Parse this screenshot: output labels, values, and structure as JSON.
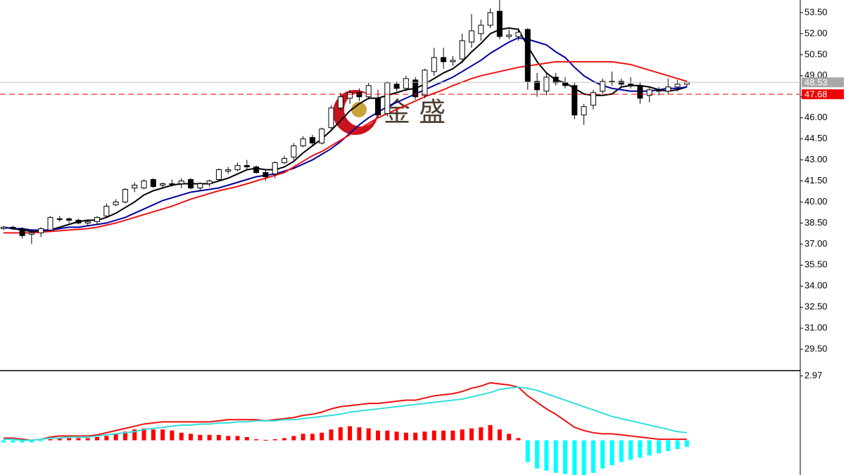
{
  "chart_data": [
    {
      "type": "candlestick",
      "watermark": "金 盛",
      "ylim": [
        28.0,
        54.4
      ],
      "yticks": [
        {
          "value": 29.5,
          "label": "29.50"
        },
        {
          "value": 31,
          "label": "31.00"
        },
        {
          "value": 32.5,
          "label": "32.50"
        },
        {
          "value": 34,
          "label": "34.00"
        },
        {
          "value": 35.5,
          "label": "35.50"
        },
        {
          "value": 37,
          "label": "37.00"
        },
        {
          "value": 38.5,
          "label": "38.50"
        },
        {
          "value": 40,
          "label": "40.00"
        },
        {
          "value": 41.5,
          "label": "41.50"
        },
        {
          "value": 43,
          "label": "43.00"
        },
        {
          "value": 44.5,
          "label": "44.50"
        },
        {
          "value": 46,
          "label": "46.00"
        },
        {
          "value": 47.5,
          "label": "47.50"
        },
        {
          "value": 49,
          "label": "49.00"
        },
        {
          "value": 50.5,
          "label": "50.50"
        },
        {
          "value": 52,
          "label": "52.00"
        },
        {
          "value": 53.5,
          "label": "53.50"
        }
      ],
      "up_color": "#ffffff",
      "down_color": "#000000",
      "outline_color": "#000000",
      "open": [
        38.1,
        38.2,
        38.1,
        37.7,
        37.8,
        38.0,
        38.8,
        38.8,
        38.7,
        38.5,
        38.6,
        39.0,
        39.8,
        40.0,
        41.0,
        41.0,
        41.6,
        41.2,
        41.3,
        41.3,
        41.6,
        41.0,
        41.3,
        41.6,
        42.2,
        42.3,
        42.6,
        42.5,
        42.1,
        42.0,
        42.8,
        43.2,
        44.0,
        44.6,
        44.2,
        45.3,
        46.7,
        47.4,
        47.8,
        47.5,
        47.4,
        46.3,
        48.4,
        48.1,
        48.7,
        47.6,
        49.3,
        50.3,
        50.0,
        50.2,
        51.4,
        52.0,
        52.6,
        53.6,
        51.8,
        51.8,
        52.3,
        48.6,
        47.9,
        48.9,
        48.5,
        48.3,
        46.2,
        46.9,
        47.9,
        48.6,
        48.6,
        48.4,
        48.3,
        47.6,
        48.0,
        47.9,
        48.2,
        48.4
      ],
      "high": [
        38.3,
        38.3,
        38.2,
        38.0,
        38.2,
        39.0,
        39.0,
        38.9,
        38.8,
        38.7,
        39.0,
        39.9,
        40.2,
        41.0,
        41.4,
        41.6,
        41.7,
        41.4,
        41.6,
        41.7,
        41.7,
        41.4,
        41.6,
        42.4,
        42.5,
        42.8,
        43.0,
        42.6,
        42.3,
        42.9,
        43.3,
        44.2,
        44.7,
        44.8,
        45.3,
        46.9,
        47.8,
        48.0,
        48.1,
        48.5,
        48.0,
        48.6,
        48.6,
        49.0,
        48.9,
        49.5,
        51.0,
        51.0,
        50.4,
        52.0,
        53.4,
        53.0,
        53.8,
        54.4,
        52.3,
        52.4,
        52.4,
        49.2,
        49.2,
        49.2,
        48.9,
        48.5,
        47.0,
        48.0,
        48.8,
        49.3,
        48.8,
        48.9,
        48.5,
        48.2,
        48.2,
        48.8,
        48.7,
        48.6
      ],
      "low": [
        38.0,
        38.0,
        37.4,
        37.0,
        37.5,
        37.9,
        38.6,
        38.5,
        38.4,
        38.3,
        38.4,
        38.9,
        39.7,
        39.9,
        40.7,
        40.9,
        41.0,
        41.0,
        41.1,
        41.0,
        40.9,
        40.8,
        41.1,
        41.5,
        42.0,
        42.2,
        42.3,
        42.0,
        41.5,
        41.7,
        42.7,
        43.0,
        43.9,
        44.0,
        44.1,
        45.2,
        46.5,
        47.0,
        47.2,
        47.3,
        46.0,
        46.1,
        47.9,
        47.9,
        47.3,
        47.4,
        49.0,
        49.5,
        49.7,
        49.9,
        51.0,
        51.5,
        52.4,
        51.6,
        51.6,
        51.5,
        48.0,
        47.5,
        47.6,
        48.3,
        48.1,
        45.9,
        45.5,
        46.6,
        47.7,
        48.3,
        48.2,
        48.1,
        47.0,
        47.1,
        47.6,
        47.7,
        47.9,
        48.2
      ],
      "close": [
        38.2,
        38.1,
        37.6,
        37.8,
        38.1,
        38.9,
        38.8,
        38.7,
        38.5,
        38.6,
        38.9,
        39.7,
        40.0,
        40.9,
        41.2,
        41.5,
        41.1,
        41.3,
        41.3,
        41.5,
        41.0,
        41.3,
        41.5,
        42.3,
        42.3,
        42.6,
        42.5,
        42.1,
        41.8,
        42.8,
        43.1,
        44.0,
        44.5,
        44.2,
        45.2,
        46.7,
        47.5,
        47.8,
        47.5,
        48.3,
        46.2,
        48.5,
        48.1,
        48.8,
        47.5,
        49.4,
        50.3,
        50.0,
        50.1,
        51.5,
        52.2,
        52.6,
        53.5,
        51.8,
        51.9,
        52.1,
        48.6,
        48.0,
        48.9,
        48.5,
        48.3,
        46.2,
        46.8,
        47.8,
        48.6,
        48.6,
        48.4,
        48.3,
        47.4,
        48.0,
        47.9,
        48.2,
        48.4,
        48.53
      ],
      "series": [
        {
          "color": "#000000",
          "values": [
            38.2,
            38.1,
            38.0,
            37.9,
            37.9,
            38.0,
            38.2,
            38.4,
            38.6,
            38.7,
            38.7,
            38.9,
            39.2,
            39.6,
            40.0,
            40.5,
            40.8,
            41.0,
            41.2,
            41.3,
            41.3,
            41.3,
            41.3,
            41.5,
            41.7,
            42.0,
            42.3,
            42.4,
            42.3,
            42.3,
            42.5,
            42.9,
            43.5,
            44.0,
            44.5,
            45.1,
            45.8,
            46.5,
            47.0,
            47.4,
            47.4,
            47.6,
            47.8,
            48.0,
            48.1,
            48.4,
            48.8,
            49.2,
            49.5,
            50.0,
            50.7,
            51.3,
            52.0,
            52.3,
            52.4,
            52.3,
            51.1,
            50.0,
            49.2,
            48.7,
            48.5,
            48.1,
            47.7,
            47.6,
            47.6,
            47.7,
            48.2,
            48.3,
            48.3,
            48.2,
            48.0,
            47.9,
            48.0,
            48.2
          ]
        },
        {
          "color": "#0000a0",
          "values": [
            38.2,
            38.1,
            38.1,
            38.0,
            38.0,
            38.0,
            38.1,
            38.2,
            38.2,
            38.3,
            38.4,
            38.5,
            38.7,
            38.9,
            39.2,
            39.5,
            39.8,
            40.1,
            40.3,
            40.5,
            40.7,
            40.8,
            40.9,
            41.0,
            41.2,
            41.4,
            41.6,
            41.8,
            41.9,
            42.0,
            42.2,
            42.4,
            42.7,
            43.0,
            43.4,
            43.8,
            44.3,
            44.9,
            45.5,
            46.0,
            46.4,
            46.8,
            47.1,
            47.4,
            47.7,
            48.0,
            48.3,
            48.6,
            48.9,
            49.3,
            49.7,
            50.1,
            50.6,
            51.0,
            51.4,
            51.7,
            51.6,
            51.4,
            51.2,
            50.7,
            50.3,
            49.6,
            49.0,
            48.6,
            48.3,
            48.1,
            48.0,
            47.9,
            47.9,
            47.9,
            48.0,
            48.1,
            48.1,
            48.2
          ]
        },
        {
          "color": "#ee1111",
          "values": [
            37.8,
            37.8,
            37.8,
            37.8,
            37.85,
            37.9,
            37.95,
            38.0,
            38.05,
            38.1,
            38.2,
            38.35,
            38.5,
            38.7,
            38.9,
            39.1,
            39.3,
            39.5,
            39.7,
            39.95,
            40.2,
            40.4,
            40.6,
            40.8,
            40.95,
            41.1,
            41.3,
            41.5,
            41.7,
            41.9,
            42.1,
            42.5,
            42.9,
            43.3,
            43.6,
            44.0,
            44.4,
            44.8,
            45.2,
            45.6,
            46.0,
            46.3,
            46.6,
            46.9,
            47.2,
            47.5,
            47.75,
            48.0,
            48.3,
            48.55,
            48.8,
            49.0,
            49.15,
            49.3,
            49.45,
            49.6,
            49.7,
            49.8,
            49.9,
            50.0,
            50.0,
            50.0,
            50.0,
            50.0,
            50.0,
            50.0,
            49.9,
            49.8,
            49.6,
            49.4,
            49.2,
            49.0,
            48.8,
            48.6
          ]
        }
      ],
      "price_lines": [
        {
          "value": 48.53,
          "color": "#c0c0c0",
          "label_color": "#a8a8a8",
          "dashed": false
        },
        {
          "value": 47.68,
          "color": "#ee0000",
          "label_color": "#ee0000",
          "dashed": true
        }
      ]
    },
    {
      "type": "macd",
      "ylim": [
        -1.6,
        3.13
      ],
      "yticks": [
        {
          "value": 2.97,
          "label": "2.97"
        }
      ],
      "up_color": "#ff0000",
      "down_color": "#00ffff",
      "histogram": [
        -0.1,
        -0.1,
        -0.1,
        -0.1,
        -0.05,
        0.05,
        0.1,
        0.1,
        0.1,
        0.1,
        0.15,
        0.2,
        0.3,
        0.4,
        0.5,
        0.55,
        0.5,
        0.5,
        0.45,
        0.35,
        0.3,
        0.25,
        0.25,
        0.25,
        0.2,
        0.2,
        0.15,
        0.05,
        0.02,
        0.05,
        0.1,
        0.2,
        0.3,
        0.3,
        0.35,
        0.5,
        0.6,
        0.65,
        0.6,
        0.55,
        0.45,
        0.45,
        0.4,
        0.35,
        0.35,
        0.4,
        0.45,
        0.45,
        0.45,
        0.5,
        0.55,
        0.6,
        0.7,
        0.5,
        0.3,
        0.1,
        -1.0,
        -1.3,
        -1.4,
        -1.5,
        -1.55,
        -1.6,
        -1.6,
        -1.5,
        -1.3,
        -1.15,
        -1.0,
        -0.9,
        -0.8,
        -0.7,
        -0.6,
        -0.5,
        -0.4,
        -0.3
      ],
      "series": [
        {
          "color": "#ee1111",
          "values": [
            0.1,
            0.1,
            0.05,
            0.0,
            0.05,
            0.15,
            0.2,
            0.2,
            0.2,
            0.2,
            0.25,
            0.35,
            0.45,
            0.55,
            0.65,
            0.75,
            0.8,
            0.85,
            0.85,
            0.85,
            0.85,
            0.85,
            0.85,
            0.9,
            0.95,
            0.95,
            0.95,
            0.95,
            0.9,
            0.95,
            1.0,
            1.05,
            1.15,
            1.2,
            1.3,
            1.45,
            1.55,
            1.6,
            1.65,
            1.7,
            1.7,
            1.75,
            1.8,
            1.85,
            1.85,
            1.95,
            2.05,
            2.1,
            2.15,
            2.25,
            2.4,
            2.5,
            2.65,
            2.6,
            2.55,
            2.45,
            2.05,
            1.75,
            1.45,
            1.2,
            0.9,
            0.6,
            0.45,
            0.35,
            0.3,
            0.3,
            0.25,
            0.2,
            0.15,
            0.1,
            0.05,
            0.05,
            0.05,
            0.05
          ]
        },
        {
          "color": "#33dddd",
          "values": [
            0.05,
            0.05,
            0.0,
            0.0,
            0.05,
            0.1,
            0.1,
            0.15,
            0.15,
            0.15,
            0.2,
            0.25,
            0.3,
            0.35,
            0.4,
            0.5,
            0.55,
            0.6,
            0.65,
            0.7,
            0.7,
            0.75,
            0.75,
            0.8,
            0.8,
            0.85,
            0.85,
            0.9,
            0.9,
            0.9,
            0.95,
            0.95,
            1.0,
            1.05,
            1.1,
            1.15,
            1.2,
            1.3,
            1.35,
            1.4,
            1.45,
            1.5,
            1.55,
            1.6,
            1.65,
            1.7,
            1.75,
            1.8,
            1.85,
            1.9,
            2.0,
            2.1,
            2.2,
            2.35,
            2.4,
            2.45,
            2.4,
            2.3,
            2.15,
            2.0,
            1.85,
            1.7,
            1.55,
            1.4,
            1.25,
            1.1,
            1.0,
            0.9,
            0.8,
            0.7,
            0.6,
            0.5,
            0.4,
            0.35
          ]
        }
      ]
    }
  ]
}
